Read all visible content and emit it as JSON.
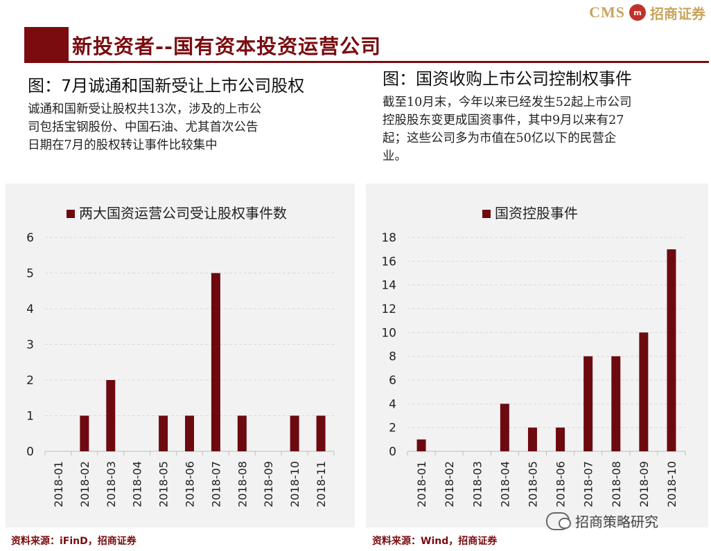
{
  "logo": {
    "cms": "CMS",
    "badge": "m",
    "company": "招商证券"
  },
  "header": {
    "title": "新投资者--国有资本投资运营公司"
  },
  "left": {
    "fig_title": "图：7月诚通和国新受让上市公司股权",
    "desc_lines": [
      "诚通和国新受让股权共13次，涉及的上市公",
      "司包括宝钢股份、中国石油、尤其首次公告",
      "日期在7月的股权转让事件比较集中"
    ],
    "source": "资料来源：iFinD，招商证券"
  },
  "right": {
    "fig_title": "图：国资收购上市公司控制权事件",
    "desc_lines": [
      "截至10月末，今年以来已经发生52起上市公司",
      "控股股东变更成国资事件，其中9月以来有27",
      "起；这些公司多为市值在50亿以下的民营企",
      "业。"
    ],
    "source": "资料来源：Wind，招商证券"
  },
  "watermark": "招商策略研究",
  "colors": {
    "accent": "#7a0c10",
    "bar": "#6d0a0f",
    "panel": "#f2f2f2",
    "grid": "#d9d9d9"
  },
  "chart_data": [
    {
      "type": "bar",
      "legend": "两大国资运营公司受让股权事件数",
      "legend_position": "top",
      "categories": [
        "2018-01",
        "2018-02",
        "2018-03",
        "2018-04",
        "2018-05",
        "2018-06",
        "2018-07",
        "2018-08",
        "2018-09",
        "2018-10",
        "2018-11"
      ],
      "values": [
        0,
        1,
        2,
        0,
        1,
        1,
        5,
        1,
        0,
        1,
        1
      ],
      "ylim": [
        0,
        6
      ],
      "yticks": [
        0,
        1,
        2,
        3,
        4,
        5,
        6
      ],
      "grid": true
    },
    {
      "type": "bar",
      "legend": "国资控股事件",
      "legend_position": "top",
      "categories": [
        "2018-01",
        "2018-02",
        "2018-03",
        "2018-04",
        "2018-05",
        "2018-06",
        "2018-07",
        "2018-08",
        "2018-09",
        "2018-10"
      ],
      "values": [
        1,
        0,
        0,
        4,
        2,
        2,
        8,
        8,
        10,
        17
      ],
      "ylim": [
        0,
        18
      ],
      "yticks": [
        0,
        2,
        4,
        6,
        8,
        10,
        12,
        14,
        16,
        18
      ],
      "grid": true
    }
  ]
}
